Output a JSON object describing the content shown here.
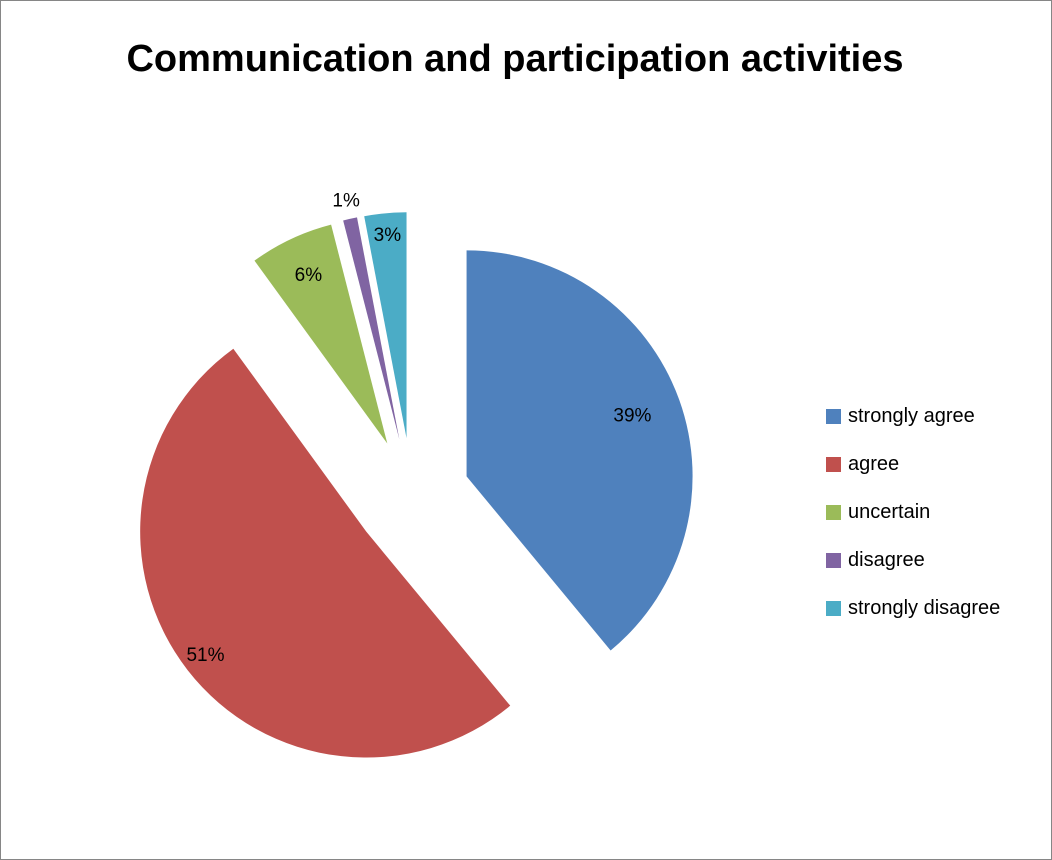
{
  "chart_data": {
    "type": "pie",
    "title": "Communication and participation activities",
    "categories": [
      "strongly agree",
      "agree",
      "uncertain",
      "disagree",
      "strongly disagree"
    ],
    "values": [
      39,
      51,
      6,
      1,
      3
    ],
    "data_labels": [
      "39%",
      "51%",
      "6%",
      "1%",
      "3%"
    ],
    "colors": [
      "#4F81BD",
      "#C0504D",
      "#9BBB59",
      "#8064A2",
      "#4BACC6"
    ],
    "exploded": true,
    "legend_position": "right"
  }
}
